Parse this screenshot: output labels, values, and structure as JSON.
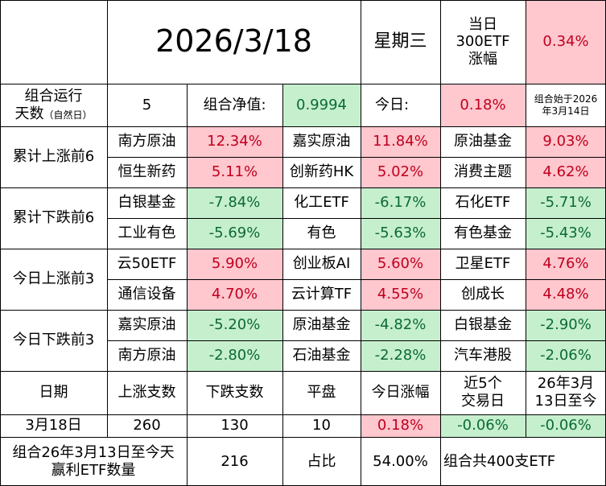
{
  "header": {
    "date": "2026/3/18",
    "weekday": "星期三",
    "index_change_label": [
      "当日",
      "300ETF",
      "涨幅"
    ],
    "index_change_value": "0.34%"
  },
  "summary": {
    "run_days_label": "组合运行",
    "run_days_label2": "天数",
    "run_days_note": "（自然日）",
    "run_days_value": "5",
    "nav_label": "组合净值:",
    "nav_value": "0.9994",
    "today_label": "今日:",
    "today_value": "0.18%",
    "start_note": [
      "组合始于2026",
      "年3月14日"
    ]
  },
  "groups": [
    {
      "label": "累计上涨前6",
      "rows": [
        [
          {
            "name": "南方原油",
            "value": "12.34%"
          },
          {
            "name": "嘉实原油",
            "value": "11.84%"
          },
          {
            "name": "原油基金",
            "value": "9.03%"
          }
        ],
        [
          {
            "name": "恒生新药",
            "value": "5.11%"
          },
          {
            "name": "创新药HK",
            "value": "5.02%"
          },
          {
            "name": "消费主题",
            "value": "4.62%"
          }
        ]
      ]
    },
    {
      "label": "累计下跌前6",
      "rows": [
        [
          {
            "name": "白银基金",
            "value": "-7.84%"
          },
          {
            "name": "化工ETF",
            "value": "-6.17%"
          },
          {
            "name": "石化ETF",
            "value": "-5.71%"
          }
        ],
        [
          {
            "name": "工业有色",
            "value": "-5.69%"
          },
          {
            "name": "有色",
            "value": "-5.63%"
          },
          {
            "name": "有色基金",
            "value": "-5.43%"
          }
        ]
      ]
    },
    {
      "label": "今日上涨前3",
      "rows": [
        [
          {
            "name": "云50ETF",
            "value": "5.90%"
          },
          {
            "name": "创业板AI",
            "value": "5.60%"
          },
          {
            "name": "卫星ETF",
            "value": "4.76%"
          }
        ],
        [
          {
            "name": "通信设备",
            "value": "4.70%"
          },
          {
            "name": "云计算TF",
            "value": "4.55%"
          },
          {
            "name": "创成长",
            "value": "4.48%"
          }
        ]
      ]
    },
    {
      "label": "今日下跌前3",
      "rows": [
        [
          {
            "name": "嘉实原油",
            "value": "-5.20%"
          },
          {
            "name": "原油基金",
            "value": "-4.82%"
          },
          {
            "name": "白银基金",
            "value": "-2.90%"
          }
        ],
        [
          {
            "name": "南方原油",
            "value": "-2.80%"
          },
          {
            "name": "石油基金",
            "value": "-2.28%"
          },
          {
            "name": "汽车港股",
            "value": "-2.06%"
          }
        ]
      ]
    }
  ],
  "stats": {
    "headers": [
      "日期",
      "上涨支数",
      "下跌支数",
      "平盘",
      "今日涨幅",
      [
        "近5个",
        "交易日"
      ],
      [
        "26年3月",
        "13日至今"
      ]
    ],
    "values": [
      "3月18日",
      "260",
      "130",
      "10",
      "0.18%",
      "-0.06%",
      "-0.06%"
    ]
  },
  "footer": {
    "label": [
      "组合26年3月13日至今天",
      "赢利ETF数量"
    ],
    "count": "216",
    "ratio_label": "占比",
    "ratio_value": "54.00%",
    "total_note": "组合共400支ETF"
  },
  "colors": {
    "positive_bg": "#ffc7ce",
    "positive_text": "#c0001e",
    "negative_bg": "#c6efce",
    "negative_text": "#0a6a36"
  }
}
